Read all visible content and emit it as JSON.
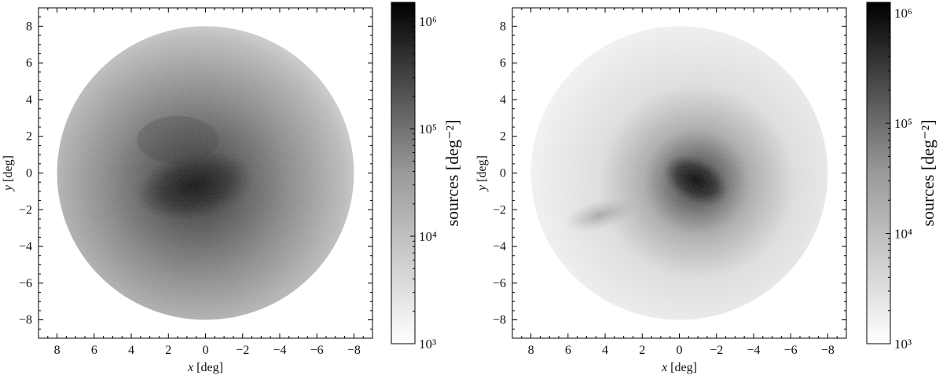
{
  "chart_data": [
    {
      "type": "heatmap",
      "title": "",
      "xlabel_var": "x",
      "xlabel_unit": " [deg]",
      "ylabel_var": "y",
      "ylabel_unit": " [deg]",
      "xlim": [
        9,
        -9
      ],
      "ylim": [
        -9,
        9
      ],
      "xticks": [
        8,
        6,
        4,
        2,
        0,
        -2,
        -4,
        -6,
        -8
      ],
      "yticks": [
        -8,
        -6,
        -4,
        -2,
        0,
        2,
        4,
        6,
        8
      ],
      "xtick_labels": [
        "8",
        "6",
        "4",
        "2",
        "0",
        "−2",
        "−4",
        "−6",
        "−8"
      ],
      "ytick_labels": [
        "−8",
        "−6",
        "−4",
        "−2",
        "0",
        "2",
        "4",
        "6",
        "8"
      ],
      "colormap": "gray_r",
      "colorbar": {
        "label": "sources [deg⁻²]",
        "scale": "log",
        "range": [
          1000,
          1500000
        ],
        "ticks": [
          1000,
          10000,
          100000,
          1000000
        ],
        "tick_labels": [
          "10³",
          "10⁴",
          "10⁵",
          "10⁶"
        ]
      },
      "description_of_density": {
        "disk_radius_deg": 8,
        "peak_center": [
          0.5,
          -0.7
        ],
        "peak_density": 1000000,
        "edge_density": 3000
      }
    },
    {
      "type": "heatmap",
      "title": "",
      "xlabel_var": "x",
      "xlabel_unit": " [deg]",
      "ylabel_var": "y",
      "ylabel_unit": " [deg]",
      "xlim": [
        9,
        -9
      ],
      "ylim": [
        -9,
        9
      ],
      "xticks": [
        8,
        6,
        4,
        2,
        0,
        -2,
        -4,
        -6,
        -8
      ],
      "yticks": [
        -8,
        -6,
        -4,
        -2,
        0,
        2,
        4,
        6,
        8
      ],
      "xtick_labels": [
        "8",
        "6",
        "4",
        "2",
        "0",
        "−2",
        "−4",
        "−6",
        "−8"
      ],
      "ytick_labels": [
        "−8",
        "−6",
        "−4",
        "−2",
        "0",
        "2",
        "4",
        "6",
        "8"
      ],
      "colormap": "gray_r",
      "colorbar": {
        "label": "sources [deg⁻²]",
        "scale": "log",
        "range": [
          1000,
          1250000
        ],
        "ticks": [
          1000,
          10000,
          100000,
          1000000
        ],
        "tick_labels": [
          "10³",
          "10⁴",
          "10⁵",
          "10⁶"
        ]
      },
      "description_of_density": {
        "disk_radius_deg": 8,
        "peak_center": [
          -1,
          -0.5
        ],
        "peak_density": 1000000,
        "edge_density": 1500
      }
    }
  ]
}
